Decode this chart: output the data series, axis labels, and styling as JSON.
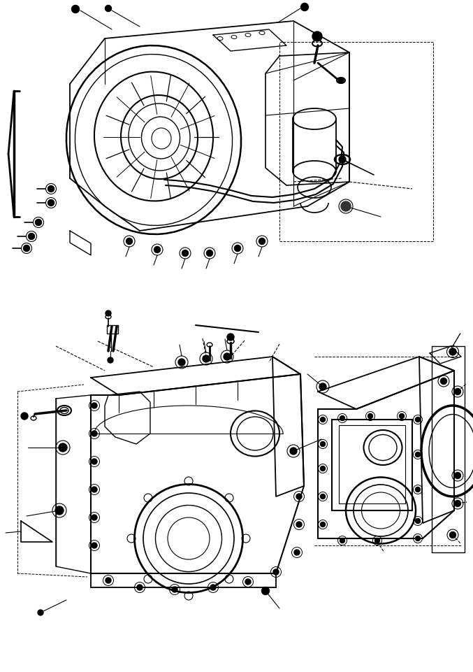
{
  "bg_color": "#ffffff",
  "line_color": "#000000",
  "fig_width": 6.77,
  "fig_height": 9.61,
  "dpi": 100
}
